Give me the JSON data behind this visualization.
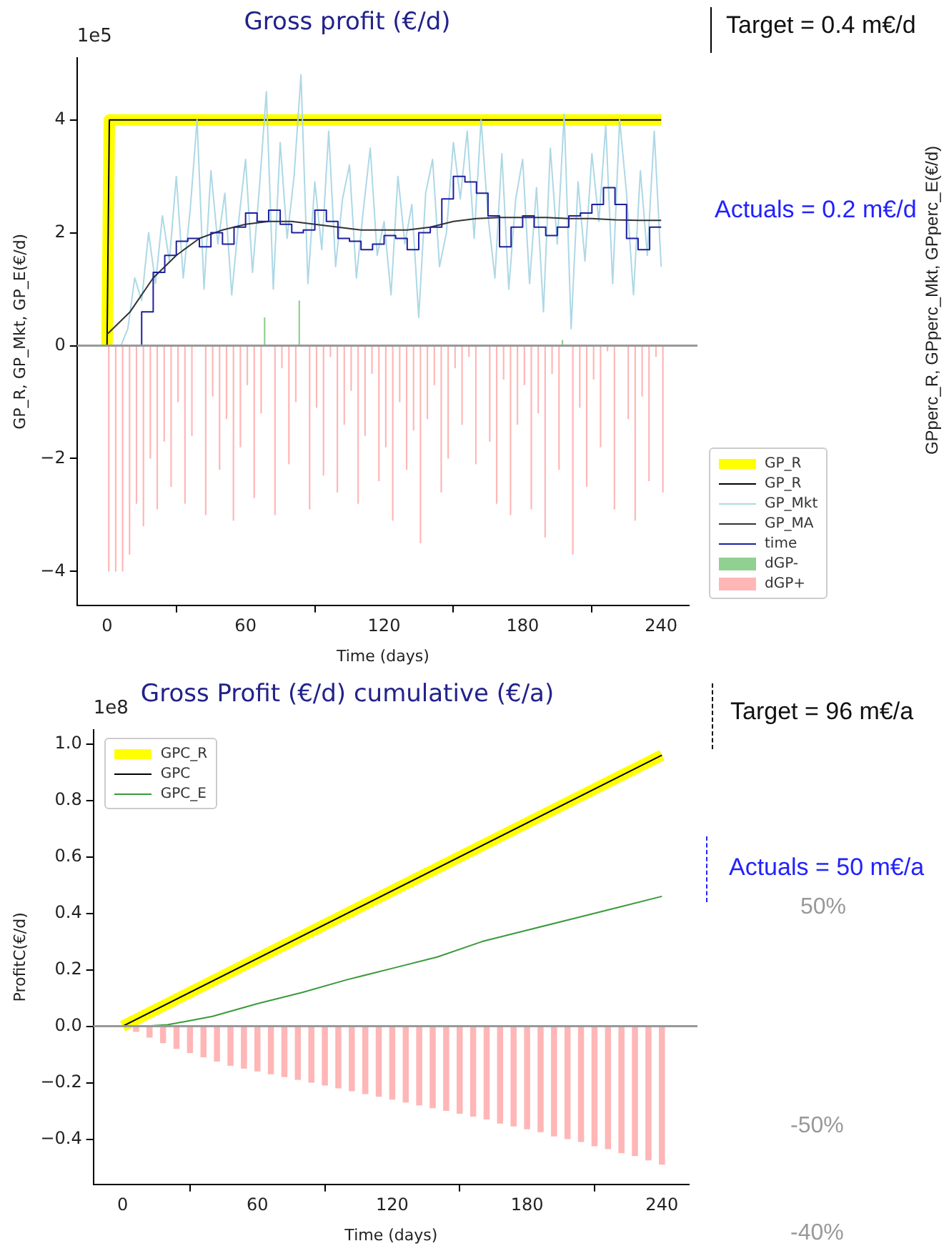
{
  "chart_data": [
    {
      "type": "line",
      "title": "Gross profit (€/d)",
      "xlabel": "Time (days)",
      "ylabel": "GP_R, GP_Mkt, GP_E(€/d)",
      "y2label": "GPperc_R, GPperc_Mkt, GPperc_E(€/d)",
      "x": [
        0,
        3,
        6,
        9,
        12,
        15,
        18,
        21,
        24,
        27,
        30,
        33,
        36,
        39,
        42,
        45,
        48,
        51,
        54,
        57,
        60,
        63,
        66,
        69,
        72,
        75,
        78,
        81,
        84,
        87,
        90,
        93,
        96,
        99,
        102,
        105,
        108,
        111,
        114,
        117,
        120,
        123,
        126,
        129,
        132,
        135,
        138,
        141,
        144,
        147,
        150,
        153,
        156,
        159,
        162,
        165,
        168,
        171,
        174,
        177,
        180,
        183,
        186,
        189,
        192,
        195,
        198,
        201,
        204,
        207,
        210,
        213,
        216,
        219,
        222,
        225,
        228,
        231,
        234,
        237,
        240
      ],
      "series": [
        {
          "name": "GP_R",
          "color": "#ffff00",
          "x": [
            0,
            1,
            240
          ],
          "values": [
            0,
            4,
            4
          ]
        },
        {
          "name": "GP_R",
          "color": "#000000",
          "x": [
            0,
            1,
            240
          ],
          "values": [
            0,
            4,
            4
          ]
        },
        {
          "name": "GP_Mkt",
          "color": "#add8e6",
          "values": [
            0,
            0,
            0,
            0.3,
            1.2,
            0.8,
            2.0,
            1.1,
            2.3,
            1.5,
            3.0,
            1.2,
            2.4,
            4.0,
            1.0,
            3.1,
            1.8,
            2.7,
            0.9,
            2.2,
            3.3,
            1.3,
            2.8,
            4.5,
            1.0,
            3.6,
            1.9,
            3.0,
            4.8,
            1.1,
            2.9,
            1.7,
            3.8,
            1.4,
            2.6,
            3.2,
            1.2,
            2.4,
            3.5,
            1.6,
            2.2,
            0.9,
            3.0,
            1.8,
            2.5,
            0.5,
            2.7,
            3.3,
            1.4,
            2.0,
            3.6,
            2.6,
            3.8,
            1.9,
            4.0,
            2.3,
            1.2,
            3.4,
            1.0,
            2.6,
            3.3,
            1.1,
            2.8,
            0.6,
            3.5,
            1.8,
            4.1,
            0.3,
            2.9,
            1.5,
            3.4,
            2.2,
            3.9,
            1.1,
            4.0,
            2.7,
            0.9,
            3.1,
            1.6,
            3.8,
            1.4
          ]
        },
        {
          "name": "GP_MA",
          "color": "#333333",
          "x": [
            0,
            10,
            20,
            30,
            40,
            50,
            60,
            70,
            80,
            90,
            100,
            110,
            120,
            130,
            140,
            150,
            160,
            170,
            180,
            190,
            200,
            210,
            220,
            230,
            240
          ],
          "values": [
            0.2,
            0.6,
            1.2,
            1.6,
            1.9,
            2.05,
            2.15,
            2.2,
            2.2,
            2.15,
            2.1,
            2.05,
            2.05,
            2.05,
            2.1,
            2.2,
            2.25,
            2.27,
            2.27,
            2.27,
            2.25,
            2.25,
            2.23,
            2.22,
            2.22
          ]
        },
        {
          "name": "time",
          "type": "step",
          "color": "#1f1f9c",
          "x": [
            10,
            15,
            20,
            25,
            30,
            35,
            40,
            45,
            50,
            55,
            60,
            65,
            70,
            75,
            80,
            85,
            90,
            95,
            100,
            105,
            110,
            115,
            120,
            125,
            130,
            135,
            140,
            145,
            150,
            155,
            160,
            165,
            170,
            175,
            180,
            185,
            190,
            195,
            200,
            205,
            210,
            215,
            220,
            225,
            230,
            235,
            240
          ],
          "values": [
            0,
            0,
            0.6,
            1.3,
            1.6,
            1.85,
            1.9,
            1.75,
            2.0,
            1.8,
            2.1,
            2.35,
            2.2,
            2.4,
            2.15,
            2.0,
            2.05,
            2.4,
            2.2,
            1.9,
            1.85,
            1.7,
            1.8,
            1.95,
            1.9,
            1.7,
            2.0,
            2.1,
            2.6,
            3.0,
            2.9,
            2.7,
            2.3,
            1.75,
            2.1,
            2.3,
            2.1,
            1.95,
            2.1,
            2.3,
            2.35,
            2.5,
            2.8,
            2.5,
            1.9,
            1.7,
            2.1
          ]
        },
        {
          "name": "dGP-",
          "type": "bar",
          "color": "#90d090",
          "values": [
            null,
            null,
            null,
            null,
            null,
            null,
            null,
            null,
            null,
            null,
            null,
            null,
            null,
            null,
            null,
            null,
            null,
            null,
            null,
            null,
            null,
            null,
            null,
            0.5,
            null,
            null,
            null,
            null,
            0.8,
            null,
            null,
            null,
            null,
            null,
            null,
            null,
            null,
            null,
            null,
            null,
            null,
            null,
            null,
            null,
            null,
            null,
            null,
            null,
            null,
            null,
            null,
            null,
            null,
            null,
            null,
            null,
            null,
            null,
            null,
            null,
            null,
            null,
            null,
            null,
            null,
            null,
            0.1,
            null,
            null,
            null,
            null,
            null,
            null,
            null,
            null,
            null,
            null,
            null,
            null,
            null,
            null
          ]
        },
        {
          "name": "dGP+",
          "type": "bar",
          "color": "#ffb6b6",
          "values": [
            -4,
            -4,
            -4,
            -3.7,
            -2.8,
            -3.2,
            -2.0,
            -2.9,
            -1.7,
            -2.5,
            -1.0,
            -2.8,
            -1.6,
            null,
            -3.0,
            -0.9,
            -2.2,
            -1.3,
            -3.1,
            -1.8,
            -0.7,
            -2.7,
            -1.2,
            null,
            -3.0,
            -0.4,
            -2.1,
            -1.0,
            null,
            -2.9,
            -1.1,
            -2.3,
            -0.2,
            -2.6,
            -1.4,
            -0.8,
            -2.8,
            -1.6,
            -0.5,
            -2.4,
            -1.8,
            -3.1,
            -1.0,
            -2.2,
            -1.5,
            -3.5,
            -1.3,
            -0.7,
            -2.6,
            -2.0,
            -0.4,
            -1.4,
            -0.2,
            -2.1,
            null,
            -1.7,
            -2.8,
            -0.6,
            -3.0,
            -1.4,
            -0.7,
            -2.9,
            -1.2,
            -3.4,
            -0.5,
            -2.2,
            null,
            -3.7,
            -1.1,
            -2.5,
            -0.6,
            -1.8,
            -0.1,
            -2.9,
            null,
            -1.3,
            -3.1,
            -0.9,
            -2.4,
            -0.2,
            -2.6
          ]
        }
      ],
      "xlim": [
        -13,
        252
      ],
      "xticks": [
        0,
        60,
        120,
        180,
        240
      ],
      "ylim": [
        -4.6,
        5.1
      ],
      "yticks": [
        {
          "value": -4,
          "label": "−4"
        },
        {
          "value": -2,
          "label": "−2"
        },
        0,
        2,
        4
      ],
      "ref_lines": [
        {
          "axis": "y",
          "value": 0,
          "color": "#999999"
        }
      ],
      "grid": false,
      "legend": "right",
      "marker": "none",
      "annotations": [
        "1e5",
        "Target = 0.4 m€/d",
        "Actuals = 0.2 m€/d"
      ]
    },
    {
      "type": "line",
      "title": "Gross Profit (€/d) cumulative (€/a)",
      "xlabel": "Time (days)",
      "ylabel": "ProfitC(€/d)",
      "x": [
        0,
        6,
        12,
        18,
        24,
        30,
        36,
        42,
        48,
        54,
        60,
        66,
        72,
        78,
        84,
        90,
        96,
        102,
        108,
        114,
        120,
        126,
        132,
        138,
        144,
        150,
        156,
        162,
        168,
        174,
        180,
        186,
        192,
        198,
        204,
        210,
        216,
        222,
        228,
        234,
        240
      ],
      "series": [
        {
          "name": "GPC_R",
          "color": "#ffff00",
          "x": [
            0,
            240
          ],
          "values": [
            0,
            0.96
          ]
        },
        {
          "name": "GPC",
          "color": "#000000",
          "x": [
            0,
            240
          ],
          "values": [
            0,
            0.96
          ]
        },
        {
          "name": "GPC_E",
          "color": "#3a9a3a",
          "x": [
            0,
            10,
            20,
            30,
            40,
            60,
            80,
            100,
            120,
            140,
            160,
            180,
            200,
            220,
            240
          ],
          "values": [
            0,
            0,
            0.005,
            0.02,
            0.035,
            0.08,
            0.12,
            0.165,
            0.205,
            0.245,
            0.3,
            0.34,
            0.38,
            0.42,
            0.46
          ]
        },
        {
          "type": "bar",
          "color": "#ffb6b6",
          "values": [
            0,
            -0.02,
            -0.04,
            -0.06,
            -0.08,
            -0.095,
            -0.11,
            -0.125,
            -0.14,
            -0.15,
            -0.16,
            -0.17,
            -0.18,
            -0.19,
            -0.2,
            -0.21,
            -0.22,
            -0.23,
            -0.24,
            -0.25,
            -0.26,
            -0.27,
            -0.28,
            -0.29,
            -0.3,
            -0.31,
            -0.32,
            -0.33,
            -0.345,
            -0.355,
            -0.365,
            -0.375,
            -0.39,
            -0.4,
            -0.41,
            -0.425,
            -0.435,
            -0.45,
            -0.46,
            -0.475,
            -0.49
          ]
        }
      ],
      "xlim": [
        -13,
        252
      ],
      "xticks": [
        0,
        60,
        120,
        180,
        240
      ],
      "ylim": [
        -0.56,
        1.05
      ],
      "yticks": [
        {
          "value": -0.4,
          "label": "−0.4"
        },
        {
          "value": -0.2,
          "label": "−0.2"
        },
        {
          "value": 0,
          "label": "0.0"
        },
        0.2,
        0.4,
        0.6,
        0.8,
        {
          "value": 1,
          "label": "1.0"
        }
      ],
      "ref_lines": [
        {
          "axis": "y",
          "value": 0,
          "color": "#999999"
        }
      ],
      "grid": false,
      "legend": "top left",
      "marker": "none",
      "annotations": [
        "1e8",
        "Target = 96 m€/a",
        "Actuals = 50 m€/a",
        "50%",
        "-50%",
        "-40%"
      ]
    }
  ]
}
